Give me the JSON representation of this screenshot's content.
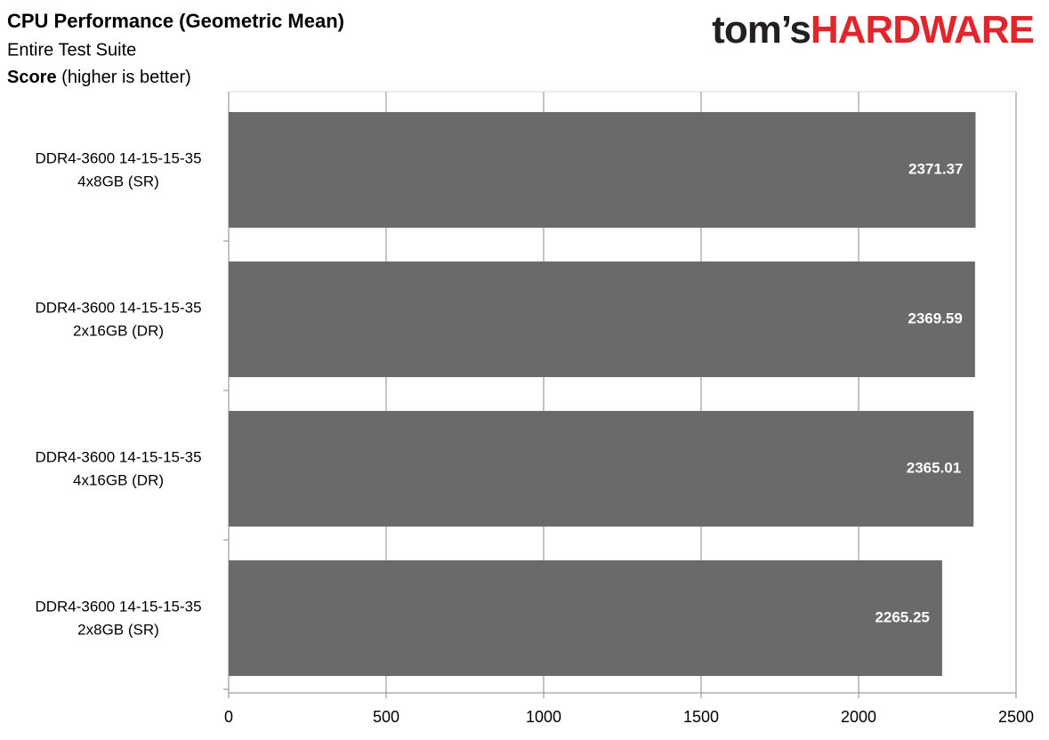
{
  "chart_data": {
    "type": "hbar",
    "title": "CPU Performance (Geometric Mean)",
    "subtitle": "Entire Test Suite",
    "axis_label": [
      "Score",
      "(higher is better)"
    ],
    "logo": [
      "tom’s",
      "HARDWARE"
    ],
    "categories": [
      [
        "DDR4-3600 14-15-15-35",
        "4x8GB (SR)"
      ],
      [
        "DDR4-3600 14-15-15-35",
        "2x16GB (DR)"
      ],
      [
        "DDR4-3600 14-15-15-35",
        "4x16GB (DR)"
      ],
      [
        "DDR4-3600 14-15-15-35",
        "2x8GB (SR)"
      ]
    ],
    "values": [
      2371.37,
      2369.59,
      2365.01,
      2265.25
    ],
    "color": "#6b6969",
    "xlim": [
      0,
      2500
    ],
    "xticks": [
      0,
      500,
      1000,
      1500,
      2000,
      2500
    ],
    "grid": true
  }
}
